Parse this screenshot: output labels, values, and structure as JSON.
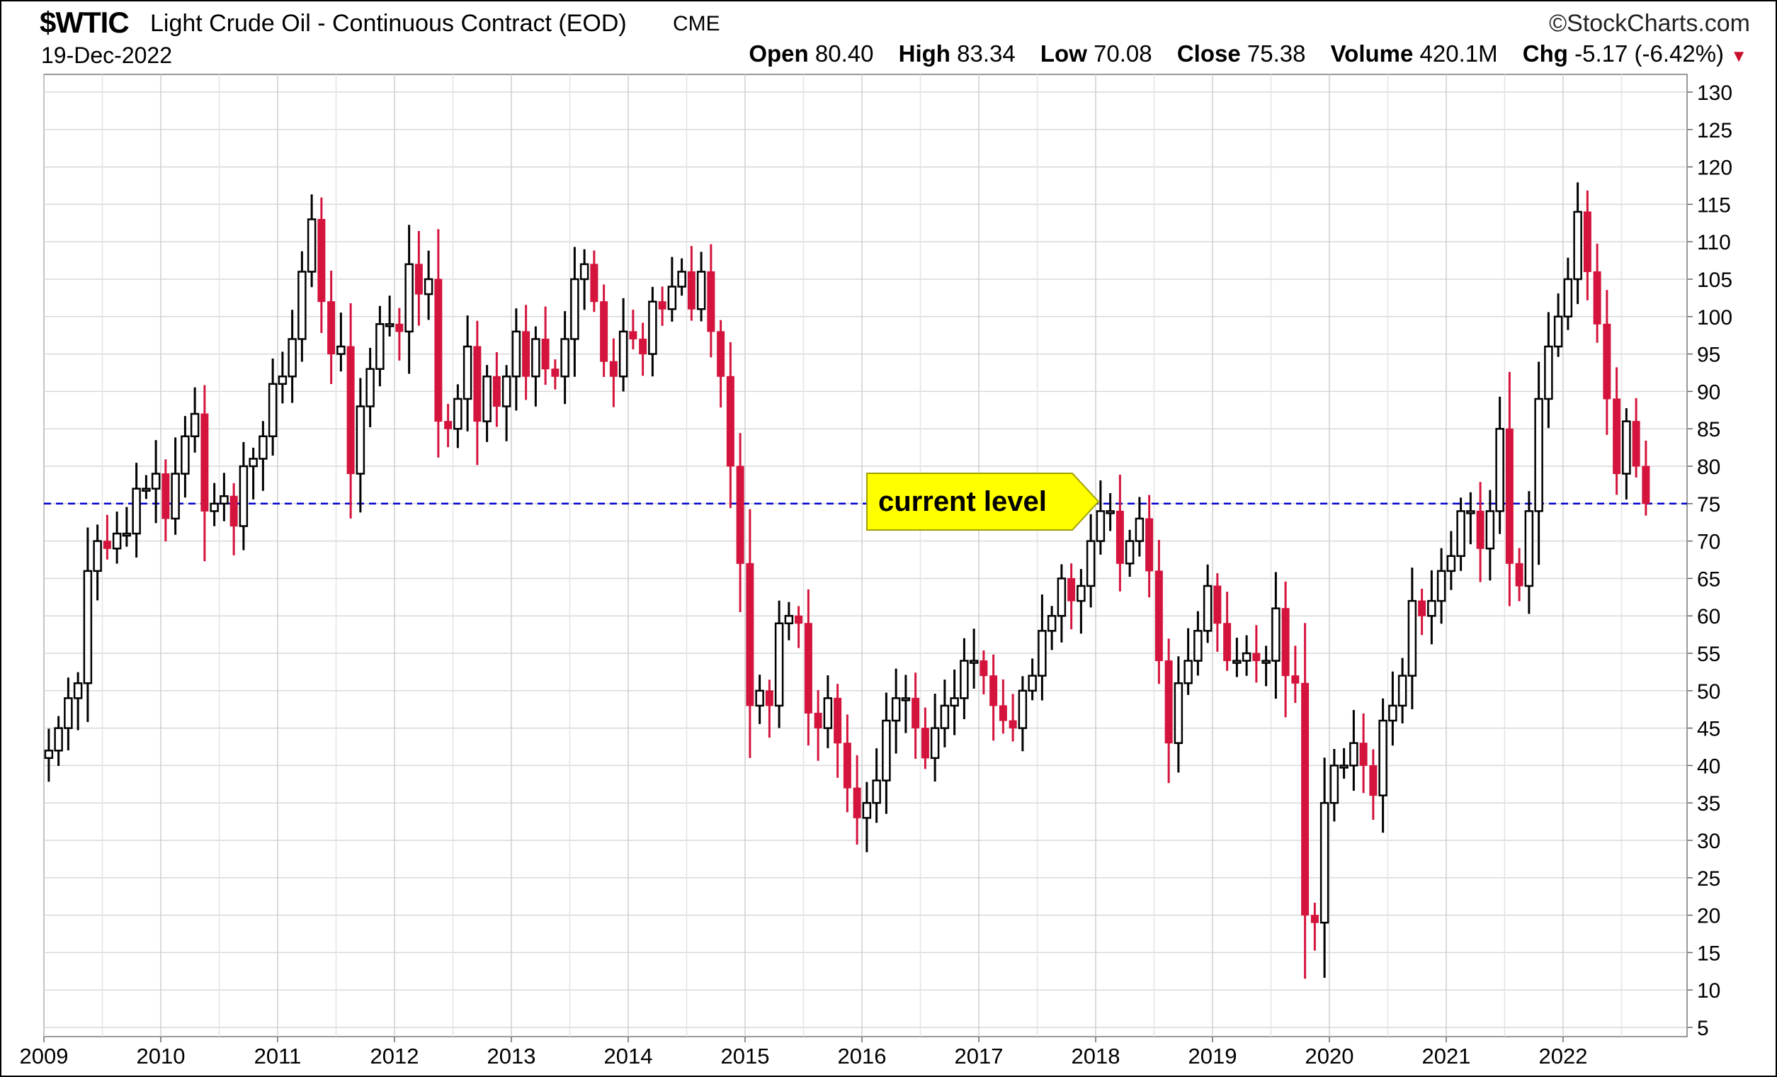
{
  "header": {
    "symbol": "$WTIC",
    "description": "Light Crude Oil - Continuous Contract (EOD)",
    "exchange": "CME",
    "date": "19-Dec-2022",
    "brand": "©StockCharts.com",
    "open_label": "Open",
    "open": "80.40",
    "high_label": "High",
    "high": "83.34",
    "low_label": "Low",
    "low": "70.08",
    "close_label": "Close",
    "close": "75.38",
    "volume_label": "Volume",
    "volume": "420.1M",
    "chg_label": "Chg",
    "chg": "-5.17 (-6.42%)"
  },
  "chart_data": {
    "type": "candlestick",
    "interval": "monthly",
    "x_start": "2009-01",
    "x_tick_labels": [
      "2009",
      "2010",
      "2011",
      "2012",
      "2013",
      "2014",
      "2015",
      "2016",
      "2017",
      "2018",
      "2019",
      "2020",
      "2021",
      "2022"
    ],
    "y_tick_labels": [
      5,
      10,
      15,
      20,
      25,
      30,
      35,
      40,
      45,
      50,
      55,
      60,
      65,
      70,
      75,
      80,
      85,
      90,
      95,
      100,
      105,
      110,
      115,
      120,
      125,
      130
    ],
    "y_axis_position": "right",
    "grid": true,
    "colors": {
      "up": "#000000",
      "down": "#d4143c",
      "reference": "#0000cc",
      "callout": "#ffff00"
    },
    "reference_line": {
      "value": 75,
      "style": "dashed"
    },
    "annotation": {
      "text": "current level",
      "at_value": 75
    },
    "closes": [
      42,
      45,
      49,
      51,
      66,
      70,
      69,
      71,
      71,
      77,
      77,
      79,
      73,
      79,
      84,
      87,
      74,
      75,
      76,
      72,
      80,
      81,
      84,
      91,
      92,
      97,
      106,
      113,
      102,
      95,
      96,
      79,
      88,
      93,
      99,
      99,
      98,
      107,
      103,
      105,
      86,
      85,
      89,
      96,
      86,
      92,
      88,
      92,
      98,
      92,
      97,
      93,
      92,
      97,
      105,
      107,
      102,
      94,
      92,
      98,
      97,
      95,
      102,
      101,
      104,
      106,
      101,
      106,
      98,
      92,
      80,
      67,
      48,
      50,
      48,
      59,
      60,
      59,
      47,
      45,
      49,
      43,
      37,
      33,
      35,
      38,
      46,
      49,
      49,
      45,
      41,
      45,
      48,
      49,
      54,
      54,
      52,
      48,
      46,
      45,
      50,
      52,
      58,
      60,
      65,
      62,
      64,
      70,
      74,
      74,
      67,
      70,
      73,
      66,
      54,
      43,
      51,
      54,
      58,
      64,
      59,
      54,
      54,
      55,
      54,
      54,
      61,
      52,
      51,
      20,
      19,
      35,
      40,
      40,
      43,
      40,
      36,
      46,
      48,
      52,
      62,
      60,
      62,
      66,
      68,
      74,
      74,
      69,
      74,
      85,
      67,
      64,
      74,
      89,
      96,
      100,
      105,
      114,
      106,
      99,
      89,
      79,
      86,
      80,
      75
    ]
  }
}
